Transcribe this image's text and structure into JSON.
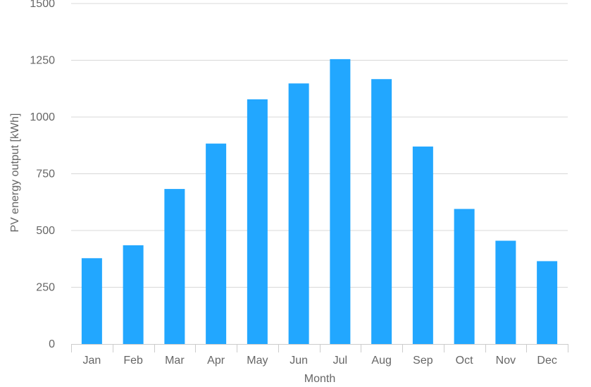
{
  "chart_data": {
    "type": "bar",
    "categories": [
      "Jan",
      "Feb",
      "Mar",
      "Apr",
      "May",
      "Jun",
      "Jul",
      "Aug",
      "Sep",
      "Oct",
      "Nov",
      "Dec"
    ],
    "values": [
      378,
      435,
      683,
      883,
      1078,
      1148,
      1255,
      1167,
      870,
      595,
      455,
      365
    ],
    "xlabel": "Month",
    "ylabel": "PV energy output [kWh]",
    "ylim": [
      0,
      1500
    ],
    "yticks": [
      0,
      250,
      500,
      750,
      1000,
      1250,
      1500
    ],
    "grid": true,
    "bar_color": "#22a7ff"
  }
}
